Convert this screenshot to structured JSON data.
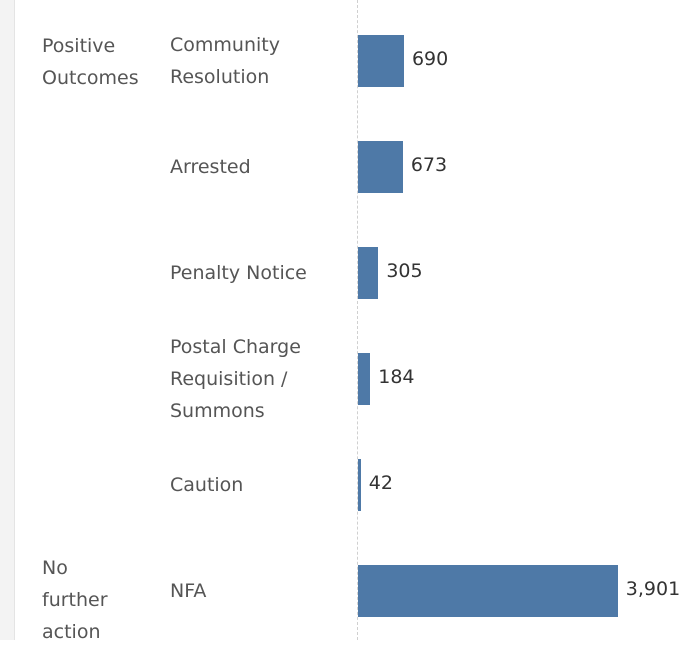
{
  "chart_data": {
    "type": "bar",
    "color": "#4e79a7",
    "xlim": [
      0,
      5000
    ],
    "groups": [
      {
        "name": "Positive Outcomes",
        "categories": [
          "Community Resolution",
          "Arrested",
          "Penalty Notice",
          "Postal Charge Requisition / Summons",
          "Caution"
        ],
        "values": [
          690,
          673,
          305,
          184,
          42
        ],
        "value_labels": [
          "690",
          "673",
          "305",
          "184",
          "42"
        ]
      },
      {
        "name": "No further action",
        "categories": [
          "NFA"
        ],
        "values": [
          3901
        ],
        "value_labels": [
          "3,901"
        ]
      }
    ]
  }
}
